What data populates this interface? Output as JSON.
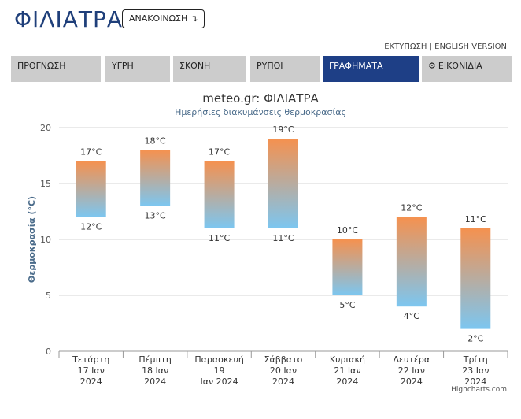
{
  "site": {
    "title": "ΦΙΛΙΑΤΡΑ",
    "announcement_label": "ΑΝΑΚΟΙΝΩΣΗ",
    "announcement_icon": "arrow-turn-down-icon"
  },
  "toplinks": {
    "print": "ΕΚΤΥΠΩΣΗ",
    "separator": "|",
    "english": "ENGLISH VERSION"
  },
  "tabs": [
    {
      "label": "ΠΡΟΓΝΩΣΗ",
      "active": false
    },
    {
      "label": "ΥΓΡΗ",
      "active": false
    },
    {
      "label": "ΣΚΟΝΗ",
      "active": false
    },
    {
      "label": "ΡΥΠΟΙ",
      "active": false
    },
    {
      "label": "ΓΡΑΦΗΜΑΤΑ",
      "active": true
    },
    {
      "label": "ΕΙΚΟΝΙΔΙΑ",
      "active": false,
      "icon": "gear-icon"
    }
  ],
  "colors": {
    "brand": "#1f3f7a",
    "active_tab": "#1e3f86",
    "inactive_tab": "#cccccc",
    "bar_top": "#f5914f",
    "bar_bottom": "#7cc6f0"
  },
  "chart_data": {
    "type": "columnrange",
    "title": "meteo.gr: ΦΙΛΙΑΤΡΑ",
    "subtitle": "Ημερήσιες διακυμάνσεις θερμοκρασίας",
    "ylabel": "Θερμοκρασία (°C)",
    "ylim": [
      0,
      20
    ],
    "yticks": [
      "0",
      "5",
      "10",
      "15",
      "20"
    ],
    "unit": "°C",
    "grid": true,
    "categories": [
      [
        "Τετάρτη",
        "17 Ιαν",
        "2024"
      ],
      [
        "Πέμπτη",
        "18 Ιαν",
        "2024"
      ],
      [
        "Παρασκευή",
        "19",
        "Ιαν 2024"
      ],
      [
        "Σάββατο",
        "20 Ιαν",
        "2024"
      ],
      [
        "Κυριακή",
        "21 Ιαν",
        "2024"
      ],
      [
        "Δευτέρα",
        "22 Ιαν",
        "2024"
      ],
      [
        "Τρίτη",
        "23 Ιαν",
        "2024"
      ]
    ],
    "low": [
      12,
      13,
      11,
      11,
      5,
      4,
      2
    ],
    "high": [
      17,
      18,
      17,
      19,
      10,
      12,
      11
    ]
  },
  "credits": "Highcharts.com"
}
